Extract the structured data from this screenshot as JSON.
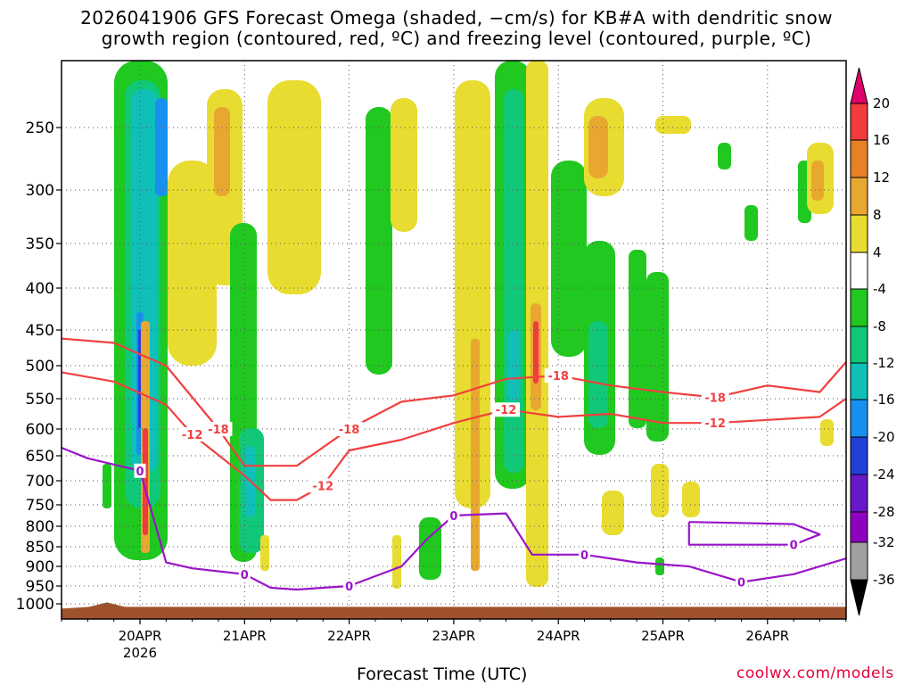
{
  "title": {
    "line1": "2026041906 GFS Forecast Omega (shaded, −cm/s) for KB#A with dendritic snow",
    "line2": "growth region (contoured, red, ºC) and freezing level (contoured, purple, ºC)"
  },
  "xlabel": "Forecast Time (UTC)",
  "credit": "coolwx.com/models",
  "chart_data": {
    "type": "heatmap",
    "title": "2026041906 GFS Forecast Omega (shaded, −cm/s) for KB#A with dendritic snow growth region (contoured, red, ºC) and freezing level (contoured, purple, ºC)",
    "xlabel": "Forecast Time (UTC)",
    "ylabel": "",
    "x_axis": {
      "type": "time",
      "range": [
        "2026-04-19T06:00",
        "2026-04-26T18:00"
      ],
      "ticks": [
        {
          "t": "2026-04-20T00:00",
          "label": "20APR",
          "sublabel": "2026"
        },
        {
          "t": "2026-04-21T00:00",
          "label": "21APR"
        },
        {
          "t": "2026-04-22T00:00",
          "label": "22APR"
        },
        {
          "t": "2026-04-23T00:00",
          "label": "23APR"
        },
        {
          "t": "2026-04-24T00:00",
          "label": "24APR"
        },
        {
          "t": "2026-04-25T00:00",
          "label": "25APR"
        },
        {
          "t": "2026-04-26T00:00",
          "label": "26APR"
        }
      ]
    },
    "y_axis": {
      "type": "pressure_hPa",
      "inverted": true,
      "range": [
        1010,
        200
      ],
      "ticks": [
        250,
        300,
        350,
        400,
        450,
        500,
        550,
        600,
        650,
        700,
        750,
        800,
        850,
        900,
        950,
        1000
      ]
    },
    "grid": "dotted",
    "colorbar": {
      "levels": [
        -36,
        -32,
        -28,
        -24,
        -20,
        -16,
        -12,
        -8,
        -4,
        4,
        8,
        12,
        16,
        20
      ],
      "labels": [
        "20",
        "16",
        "12",
        "8",
        "4",
        "-4",
        "-8",
        "-12",
        "-16",
        "-20",
        "-24",
        "-28",
        "-32",
        "-36"
      ],
      "colors": {
        "below_-32": "#000000",
        "-36_to_-32": "#a0a0a0",
        "-32_to_-28": "#9000c0",
        "-28_to_-24": "#6818c8",
        "-24_to_-20": "#2040d8",
        "-20_to_-16": "#1890f0",
        "-16_to_-12": "#10c0b8",
        "-12_to_-8": "#10c878",
        "-8_to_-4": "#20c820",
        "-4_to_4": "#ffffff",
        "4_to_8": "#e8dc30",
        "8_to_12": "#e8a830",
        "12_to_16": "#e88028",
        "16_to_20": "#f03c3c",
        "above_20": "#e0006c"
      }
    },
    "contours": [
      {
        "name": "dgz_-12",
        "color": "#f04040",
        "labels": [
          "-12",
          "-12",
          "-12",
          "-12"
        ],
        "points": [
          [
            "2026-04-19T06:00",
            510
          ],
          [
            "2026-04-19T18:00",
            524
          ],
          [
            "2026-04-20T06:00",
            560
          ],
          [
            "2026-04-20T12:00",
            610
          ],
          [
            "2026-04-21T00:00",
            690
          ],
          [
            "2026-04-21T06:00",
            740
          ],
          [
            "2026-04-21T12:00",
            740
          ],
          [
            "2026-04-21T18:00",
            710
          ],
          [
            "2026-04-22T00:00",
            640
          ],
          [
            "2026-04-22T12:00",
            620
          ],
          [
            "2026-04-23T00:00",
            590
          ],
          [
            "2026-04-23T12:00",
            568
          ],
          [
            "2026-04-24T00:00",
            580
          ],
          [
            "2026-04-24T12:00",
            575
          ],
          [
            "2026-04-25T00:00",
            590
          ],
          [
            "2026-04-25T12:00",
            590
          ],
          [
            "2026-04-26T00:00",
            585
          ],
          [
            "2026-04-26T12:00",
            580
          ],
          [
            "2026-04-26T18:00",
            550
          ]
        ]
      },
      {
        "name": "dgz_-18",
        "color": "#f04040",
        "labels": [
          "-18",
          "-18",
          "-18",
          "-18"
        ],
        "points": [
          [
            "2026-04-19T06:00",
            462
          ],
          [
            "2026-04-19T18:00",
            468
          ],
          [
            "2026-04-20T06:00",
            500
          ],
          [
            "2026-04-20T18:00",
            600
          ],
          [
            "2026-04-21T00:00",
            670
          ],
          [
            "2026-04-21T12:00",
            670
          ],
          [
            "2026-04-22T00:00",
            600
          ],
          [
            "2026-04-22T12:00",
            555
          ],
          [
            "2026-04-23T00:00",
            545
          ],
          [
            "2026-04-23T12:00",
            520
          ],
          [
            "2026-04-24T00:00",
            515
          ],
          [
            "2026-04-24T12:00",
            530
          ],
          [
            "2026-04-25T00:00",
            540
          ],
          [
            "2026-04-25T12:00",
            548
          ],
          [
            "2026-04-26T00:00",
            530
          ],
          [
            "2026-04-26T12:00",
            540
          ],
          [
            "2026-04-26T18:00",
            495
          ]
        ]
      },
      {
        "name": "freezing_level_0",
        "color": "#9a14c8",
        "labels": [
          "0",
          "0",
          "0",
          "0",
          "0",
          "0"
        ],
        "points": [
          [
            "2026-04-19T06:00",
            635
          ],
          [
            "2026-04-19T12:00",
            655
          ],
          [
            "2026-04-20T00:00",
            680
          ],
          [
            "2026-04-20T06:00",
            890
          ],
          [
            "2026-04-20T12:00",
            905
          ],
          [
            "2026-04-21T00:00",
            920
          ],
          [
            "2026-04-21T06:00",
            955
          ],
          [
            "2026-04-21T12:00",
            960
          ],
          [
            "2026-04-22T00:00",
            950
          ],
          [
            "2026-04-22T12:00",
            900
          ],
          [
            "2026-04-22T18:00",
            830
          ],
          [
            "2026-04-23T00:00",
            775
          ],
          [
            "2026-04-23T12:00",
            770
          ],
          [
            "2026-04-23T18:00",
            870
          ],
          [
            "2026-04-24T06:00",
            870
          ],
          [
            "2026-04-24T18:00",
            890
          ],
          [
            "2026-04-25T06:00",
            900
          ],
          [
            "2026-04-25T18:00",
            940
          ],
          [
            "2026-04-26T06:00",
            920
          ],
          [
            "2026-04-26T18:00",
            880
          ]
        ]
      },
      {
        "name": "freezing_level_0_closed",
        "color": "#9a14c8",
        "labels": [
          "0"
        ],
        "points": [
          [
            "2026-04-25T06:00",
            790
          ],
          [
            "2026-04-26T06:00",
            795
          ],
          [
            "2026-04-26T12:00",
            820
          ],
          [
            "2026-04-26T06:00",
            845
          ],
          [
            "2026-04-25T06:00",
            845
          ],
          [
            "2026-04-25T06:00",
            790
          ]
        ]
      }
    ],
    "terrain": {
      "color": "#a0522d",
      "surface_hPa": 1002
    }
  }
}
